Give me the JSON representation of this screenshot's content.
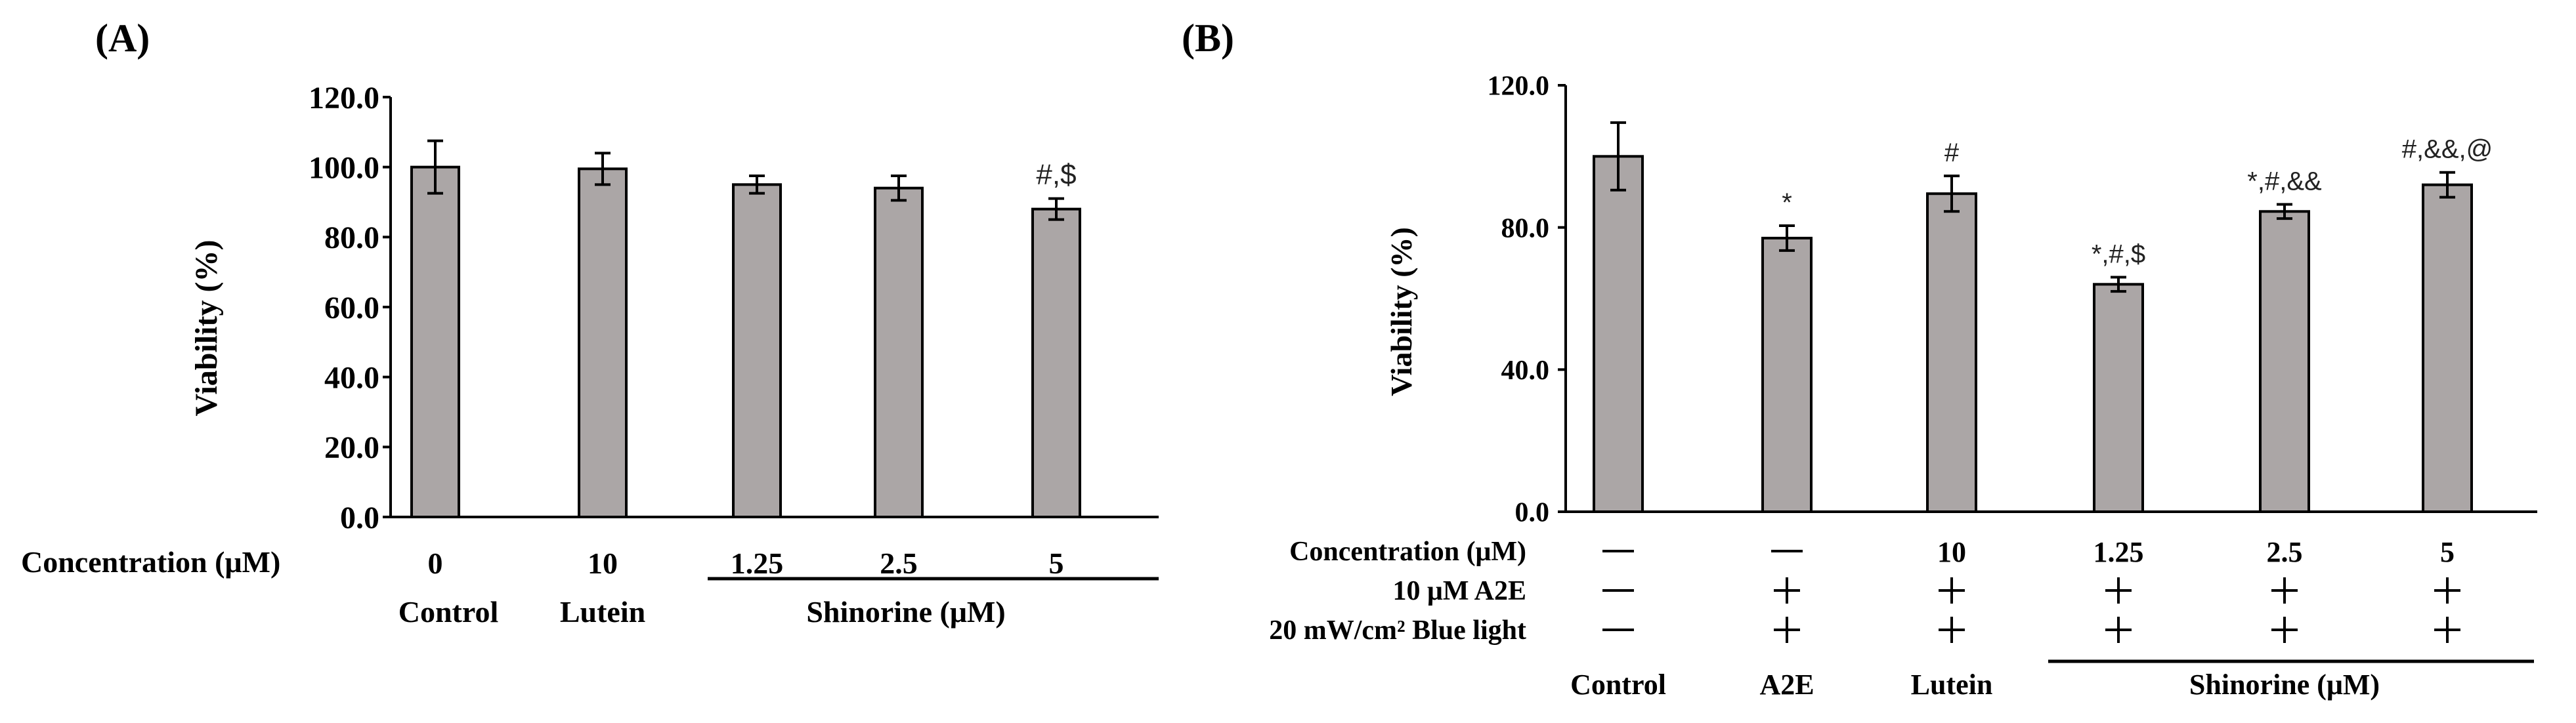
{
  "chart_data": [
    {
      "type": "bar",
      "panel_label": "(A)",
      "ylabel": "Viability  (%)",
      "ylim": [
        0,
        120
      ],
      "yticks": [
        "0.0",
        "20.0",
        "40.0",
        "60.0",
        "80.0",
        "100.0",
        "120.0"
      ],
      "ytick_values": [
        0,
        20,
        40,
        60,
        80,
        100,
        120
      ],
      "categories": [
        "Control",
        "Lutein",
        "Shinorine 1.25",
        "Shinorine 2.5",
        "Shinorine 5"
      ],
      "values": [
        100,
        99.5,
        95,
        94,
        88
      ],
      "errors": [
        7.5,
        4.5,
        2.5,
        3.5,
        3.0
      ],
      "annotations": [
        "",
        "",
        "",
        "",
        "#,$"
      ],
      "bar_color": "#aba6a6",
      "row_labels": [
        "Concentration  (μM)"
      ],
      "rows": [
        [
          "0",
          "10",
          "1.25",
          "2.5",
          "5"
        ]
      ],
      "group_labels": [
        "Control",
        "Lutein",
        "Shinorine  (μM)"
      ]
    },
    {
      "type": "bar",
      "panel_label": "(B)",
      "ylabel": "Viability (%)",
      "ylim": [
        0,
        120
      ],
      "yticks": [
        "0.0",
        "40.0",
        "80.0",
        "120.0"
      ],
      "ytick_values": [
        0,
        40,
        80,
        120
      ],
      "categories": [
        "Control",
        "A2E",
        "Lutein",
        "Shinorine 1.25",
        "Shinorine 2.5",
        "Shinorine 5"
      ],
      "values": [
        100,
        77,
        89.5,
        64,
        84.5,
        92
      ],
      "errors": [
        9.5,
        3.5,
        5.0,
        2.0,
        2.0,
        3.5
      ],
      "annotations": [
        "",
        "*",
        "#",
        "*,#,$",
        "*,#,&&",
        "#,&&,@"
      ],
      "bar_color": "#aba6a6",
      "row_labels": [
        "Concentration  (μM)",
        "10 μM  A2E",
        "20 mW/cm² Blue light"
      ],
      "rows": [
        [
          "—",
          "—",
          "10",
          "1.25",
          "2.5",
          "5"
        ],
        [
          "—",
          "+",
          "+",
          "+",
          "+",
          "+"
        ],
        [
          "—",
          "+",
          "+",
          "+",
          "+",
          "+"
        ]
      ],
      "group_labels": [
        "Control",
        "A2E",
        "Lutein",
        "Shinorine  (μM)"
      ]
    }
  ]
}
